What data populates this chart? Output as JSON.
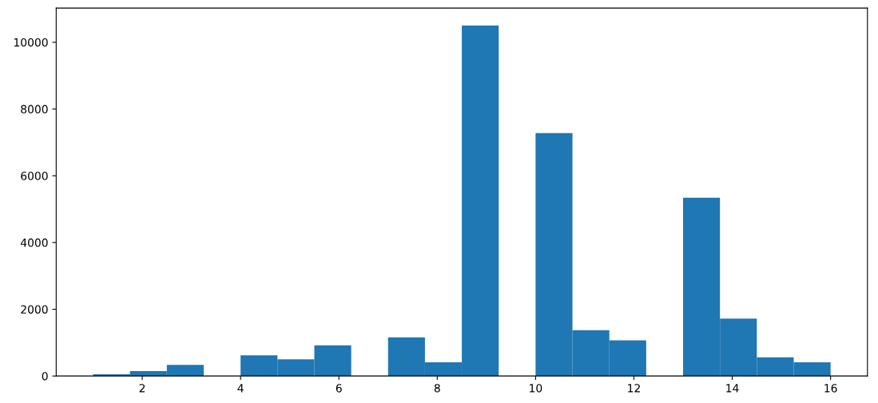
{
  "chart_data": {
    "type": "histogram",
    "color": "#1f77b4",
    "bins": [
      1,
      1.75,
      2.5,
      3.25,
      4,
      4.75,
      5.5,
      6.25,
      7,
      7.75,
      8.5,
      9.25,
      10,
      10.75,
      11.5,
      12.25,
      13,
      13.75,
      14.5,
      15.25,
      16
    ],
    "values": [
      50,
      150,
      330,
      0,
      620,
      500,
      920,
      0,
      1160,
      410,
      10500,
      0,
      7280,
      1370,
      1070,
      0,
      5340,
      1720,
      560,
      410
    ],
    "xlim": [
      0.25,
      16.75
    ],
    "xticks": [
      2,
      4,
      6,
      8,
      10,
      12,
      14,
      16
    ],
    "ylim": [
      0,
      11025
    ],
    "yticks": [
      0,
      2000,
      4000,
      6000,
      8000,
      10000
    ],
    "grid": false
  }
}
